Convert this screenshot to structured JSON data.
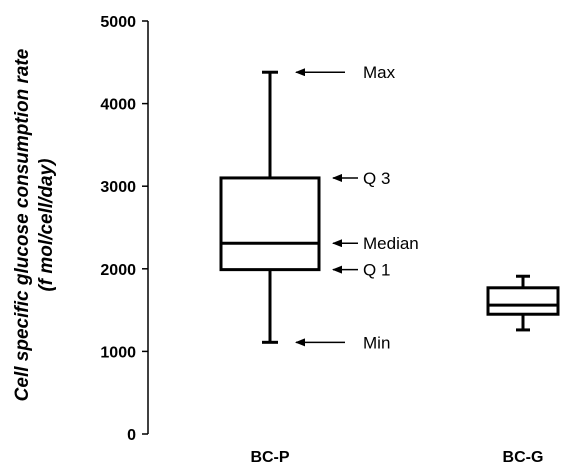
{
  "chart_data": {
    "type": "box",
    "ylabel_line1": "Cell specific glucose consumption rate",
    "ylabel_line2": "(f mol/cell/day)",
    "ylim": [
      0,
      5000
    ],
    "yticks": [
      0,
      1000,
      2000,
      3000,
      4000,
      5000
    ],
    "categories": [
      "BC-P",
      "BC-G"
    ],
    "boxes": [
      {
        "category": "BC-P",
        "min": 1110,
        "q1": 1990,
        "median": 2310,
        "q3": 3100,
        "max": 4380
      },
      {
        "category": "BC-G",
        "min": 1260,
        "q1": 1450,
        "median": 1560,
        "q3": 1770,
        "max": 1910
      }
    ],
    "annotations": [
      {
        "text": "Max",
        "value": 4380
      },
      {
        "text": "Q 3",
        "value": 3100
      },
      {
        "text": "Median",
        "value": 2310
      },
      {
        "text": "Q 1",
        "value": 1990
      },
      {
        "text": "Min",
        "value": 1110
      }
    ],
    "grid": false,
    "legend": "none"
  }
}
